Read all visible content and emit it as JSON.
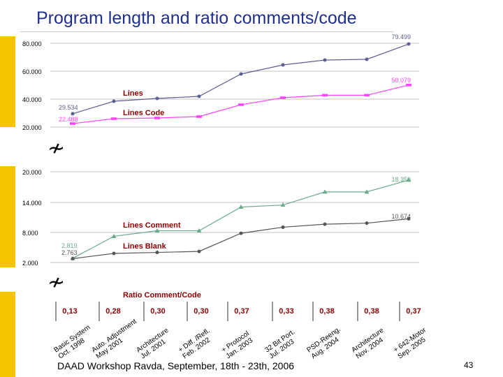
{
  "title": "Program length and ratio comments/code",
  "footer": "DAAD Workshop Ravda, September, 18th - 23th, 2006",
  "slide_number": "43",
  "break_symbol": "≁",
  "colors": {
    "accent_bar": "#f5c400",
    "title": "#1f2f8a",
    "grid": "#c0c0c0",
    "lines_series": "#5a5f8f",
    "lines_code_series": "#ff44ff",
    "lines_comment_series": "#6aaa8a",
    "lines_blank_series": "#555555",
    "ratio_label": "#8b0000"
  },
  "chart_data": [
    {
      "type": "line",
      "categories": [
        "Basic System Oct. 1998",
        "Auto. Adjustment May 2001",
        "Architecture Jul. 2001",
        "+ Diff. /Refl. Feb. 2002",
        "+ Protocol Jan. 2003",
        "32 Bit Port. Jul. 2003",
        "PSD-Reeng. Aug. 2004",
        "Architecture Nov. 2004",
        "+ 642-Motor Sep. 2005"
      ],
      "series": [
        {
          "name": "Lines",
          "values": [
            29534,
            38500,
            40500,
            42000,
            58000,
            64500,
            68000,
            68500,
            79499
          ],
          "first_label": "29.534",
          "last_label": "79.499"
        },
        {
          "name": "Lines Code",
          "values": [
            22488,
            26000,
            26500,
            27500,
            36000,
            41000,
            42800,
            42800,
            50079
          ],
          "first_label": "22.488",
          "last_label": "50.079"
        }
      ],
      "yticks": [
        "20.000",
        "40.000",
        "60.000",
        "80.000"
      ],
      "ylim": [
        20000,
        80000
      ],
      "grid": true
    },
    {
      "type": "line",
      "categories": [
        "Basic System Oct. 1998",
        "Auto. Adjustment May 2001",
        "Architecture Jul. 2001",
        "+ Diff. /Refl. Feb. 2002",
        "+ Protocol Jan. 2003",
        "32 Bit Port. Jul. 2003",
        "PSD-Reeng. Aug. 2004",
        "Architecture Nov. 2004",
        "+ 642-Motor Sep. 2005"
      ],
      "series": [
        {
          "name": "Lines Comment",
          "values": [
            2819,
            7200,
            8300,
            8300,
            13000,
            13400,
            16000,
            16000,
            18350
          ],
          "first_label": "2.819",
          "last_label": "18.350"
        },
        {
          "name": "Lines Blank",
          "values": [
            2763,
            3800,
            4000,
            4200,
            7800,
            9000,
            9600,
            9800,
            10674
          ],
          "first_label": "2.763",
          "last_label": "10.674"
        }
      ],
      "yticks": [
        "2.000",
        "8.000",
        "14.000",
        "20.000"
      ],
      "ylim": [
        2000,
        20000
      ],
      "grid": true
    },
    {
      "type": "table",
      "title": "Ratio Comment/Code",
      "values": [
        "0,13",
        "0,28",
        "0,30",
        "0,30",
        "0,37",
        "0,33",
        "0,38",
        "0,38",
        "0,37"
      ],
      "x_tick_labels": [
        [
          "Basic System",
          "Oct. 1998"
        ],
        [
          "Auto. Adjustment",
          "May 2001"
        ],
        [
          "Architecture",
          "Jul. 2001"
        ],
        [
          "+ Diff. /Refl.",
          "Feb. 2002"
        ],
        [
          "+ Protocol",
          "Jan. 2003"
        ],
        [
          "32 Bit Port.",
          "Jul. 2003"
        ],
        [
          "PSD-Reeng.",
          "Aug. 2004"
        ],
        [
          "Architecture",
          "Nov. 2004"
        ],
        [
          "+ 642-Motor",
          "Sep. 2005"
        ]
      ]
    }
  ]
}
